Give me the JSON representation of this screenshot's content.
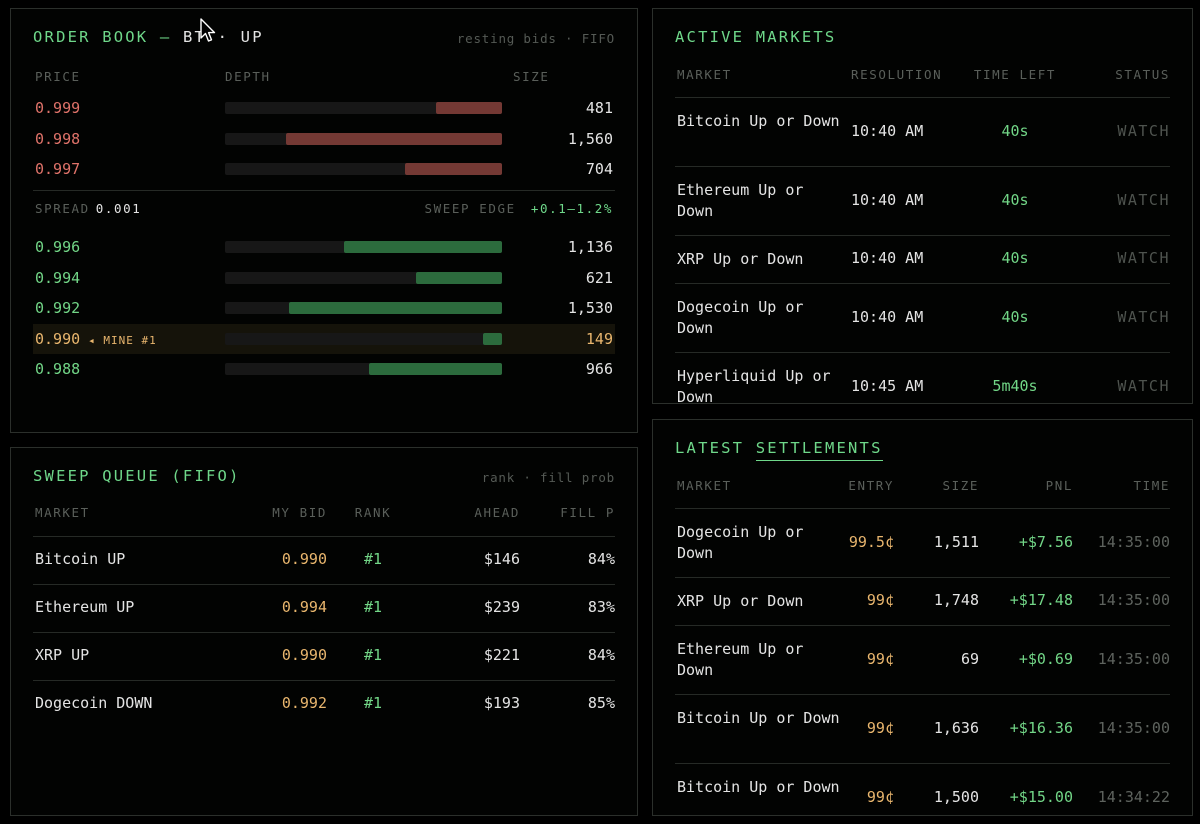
{
  "order_book": {
    "title_prefix": "ORDER BOOK —",
    "title_asset": "BT",
    "title_sep": "·",
    "title_side": "UP",
    "hint": "resting bids · FIFO",
    "headers": {
      "price": "PRICE",
      "depth": "DEPTH",
      "size": "SIZE"
    },
    "asks": [
      {
        "price": "0.999",
        "size": "481",
        "depth": 0.24
      },
      {
        "price": "0.998",
        "size": "1,560",
        "depth": 0.78
      },
      {
        "price": "0.997",
        "size": "704",
        "depth": 0.35
      }
    ],
    "spread_label": "SPREAD",
    "spread_value": "0.001",
    "sweep_label": "SWEEP EDGE",
    "sweep_value": "+0.1–1.2%",
    "bids": [
      {
        "price": "0.996",
        "size": "1,136",
        "depth": 0.57,
        "mine": false,
        "mine_tag": ""
      },
      {
        "price": "0.994",
        "size": "621",
        "depth": 0.31,
        "mine": false,
        "mine_tag": ""
      },
      {
        "price": "0.992",
        "size": "1,530",
        "depth": 0.77,
        "mine": false,
        "mine_tag": ""
      },
      {
        "price": "0.990",
        "size": "149",
        "depth": 0.07,
        "mine": true,
        "mine_tag": "◂ MINE #1"
      },
      {
        "price": "0.988",
        "size": "966",
        "depth": 0.48,
        "mine": false,
        "mine_tag": ""
      }
    ]
  },
  "active_markets": {
    "title": "ACTIVE MARKETS",
    "headers": {
      "market": "MARKET",
      "resolution": "RESOLUTION",
      "time_left": "TIME LEFT",
      "status": "STATUS"
    },
    "rows": [
      {
        "market": "Bitcoin Up or Down",
        "resolution": "10:40 AM",
        "time_left": "40s",
        "status": "WATCH"
      },
      {
        "market": "Ethereum Up or Down",
        "resolution": "10:40 AM",
        "time_left": "40s",
        "status": "WATCH"
      },
      {
        "market": "XRP Up or Down",
        "resolution": "10:40 AM",
        "time_left": "40s",
        "status": "WATCH"
      },
      {
        "market": "Dogecoin Up or Down",
        "resolution": "10:40 AM",
        "time_left": "40s",
        "status": "WATCH"
      },
      {
        "market": "Hyperliquid Up or Down",
        "resolution": "10:45 AM",
        "time_left": "5m40s",
        "status": "WATCH"
      }
    ]
  },
  "sweep_queue": {
    "title": "SWEEP QUEUE (FIFO)",
    "hint": "rank · fill prob",
    "headers": {
      "market": "MARKET",
      "my_bid": "MY BID",
      "rank": "RANK",
      "ahead": "AHEAD",
      "fill": "FILL P"
    },
    "rows": [
      {
        "market": "Bitcoin UP",
        "my_bid": "0.990",
        "rank": "#1",
        "ahead": "$146",
        "fill": "84%"
      },
      {
        "market": "Ethereum UP",
        "my_bid": "0.994",
        "rank": "#1",
        "ahead": "$239",
        "fill": "83%"
      },
      {
        "market": "XRP UP",
        "my_bid": "0.990",
        "rank": "#1",
        "ahead": "$221",
        "fill": "84%"
      },
      {
        "market": "Dogecoin DOWN",
        "my_bid": "0.992",
        "rank": "#1",
        "ahead": "$193",
        "fill": "85%"
      }
    ]
  },
  "latest_settlements": {
    "title_prefix": "LATEST",
    "title_link": "SETTLEMENTS",
    "headers": {
      "market": "MARKET",
      "entry": "ENTRY",
      "size": "SIZE",
      "pnl": "PNL",
      "time": "TIME"
    },
    "rows": [
      {
        "market": "Dogecoin Up or Down",
        "entry": "99.5¢",
        "size": "1,511",
        "pnl": "+$7.56",
        "time": "14:35:00"
      },
      {
        "market": "XRP Up or Down",
        "entry": "99¢",
        "size": "1,748",
        "pnl": "+$17.48",
        "time": "14:35:00"
      },
      {
        "market": "Ethereum Up or Down",
        "entry": "99¢",
        "size": "69",
        "pnl": "+$0.69",
        "time": "14:35:00"
      },
      {
        "market": "Bitcoin Up or Down",
        "entry": "99¢",
        "size": "1,636",
        "pnl": "+$16.36",
        "time": "14:35:00"
      },
      {
        "market": "Bitcoin Up or Down",
        "entry": "99¢",
        "size": "1,500",
        "pnl": "+$15.00",
        "time": "14:34:22"
      }
    ]
  },
  "colors": {
    "green": "#72d687",
    "red": "#e0736a",
    "amber": "#e9b66e",
    "ask_bar": "#743934",
    "bid_bar": "#2c6b3d"
  },
  "cursor": {
    "icon": "arrow-cursor-icon"
  }
}
